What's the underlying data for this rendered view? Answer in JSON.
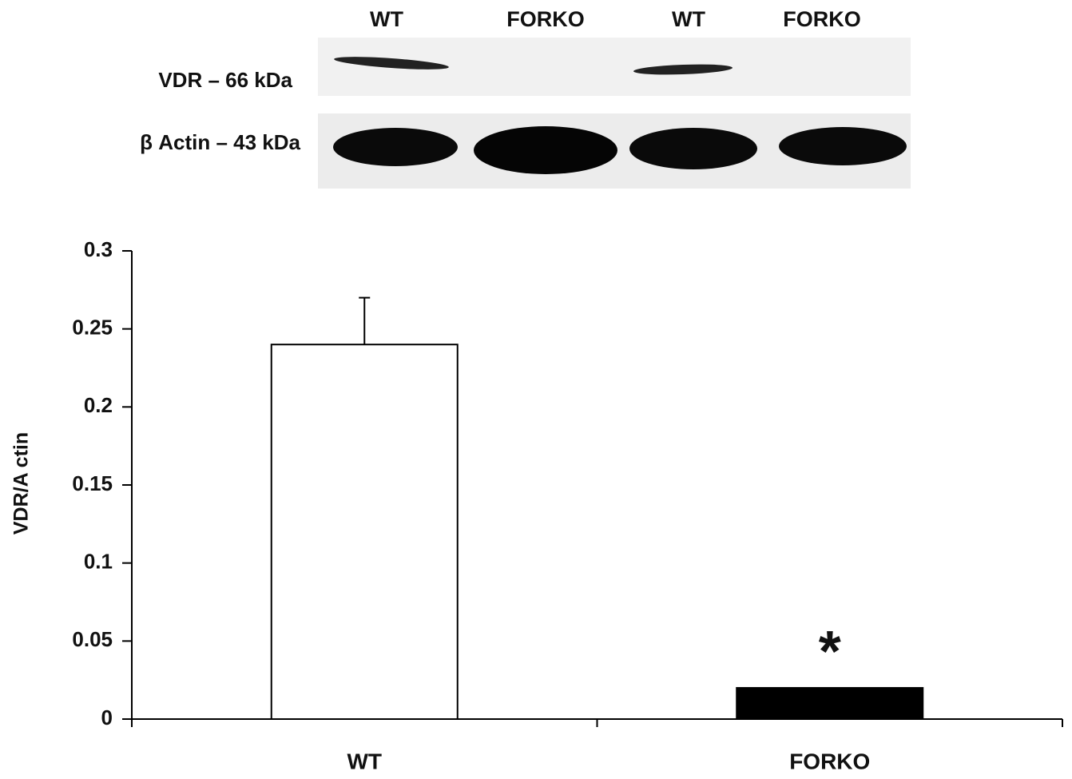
{
  "blot": {
    "lanes": [
      "WT",
      "FORKO",
      "WT",
      "FORKO"
    ],
    "rows": [
      "VDR – 66 kDa",
      "β Actin – 43 kDa"
    ]
  },
  "chart_data": {
    "type": "bar",
    "categories": [
      "WT",
      "FORKO"
    ],
    "values": [
      0.24,
      0.02
    ],
    "errors": [
      0.03,
      null
    ],
    "colors": [
      "#ffffff",
      "#000000"
    ],
    "y_label": "VDR/A ctin",
    "ylim": [
      0,
      0.3
    ],
    "yticks": [
      0,
      0.05,
      0.1,
      0.15,
      0.2,
      0.25,
      0.3
    ],
    "annotations": [
      {
        "category": "FORKO",
        "text": "*"
      }
    ]
  }
}
